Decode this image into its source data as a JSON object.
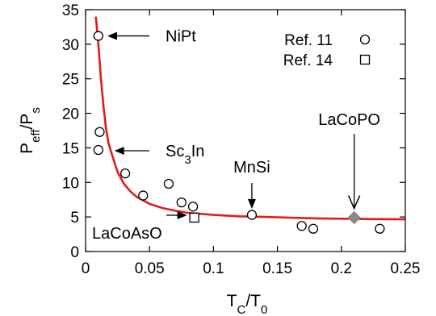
{
  "chart_data": {
    "type": "scatter",
    "xlim": [
      0,
      0.25
    ],
    "ylim": [
      0,
      35
    ],
    "x_ticks": [
      "0",
      "0.05",
      "0.1",
      "0.15",
      "0.2",
      "0.25"
    ],
    "x_tick_values": [
      0,
      0.05,
      0.1,
      0.15,
      0.2,
      0.25
    ],
    "y_ticks": [
      "0",
      "5",
      "10",
      "15",
      "20",
      "25",
      "30",
      "35"
    ],
    "y_tick_values": [
      0,
      5,
      10,
      15,
      20,
      25,
      30,
      35
    ],
    "xlabel": {
      "main": "T",
      "sub": "C",
      "mid": "/T",
      "sub2": "0"
    },
    "ylabel": {
      "main": "P",
      "sub": "eff",
      "mid": "/P",
      "sub2": "s"
    },
    "grid": false,
    "legend_position": "top-right",
    "series": [
      {
        "name": "Ref. 11",
        "marker": "circle",
        "points": [
          {
            "x": 0.01,
            "y": 31.2
          },
          {
            "x": 0.011,
            "y": 17.3
          },
          {
            "x": 0.01,
            "y": 14.7
          },
          {
            "x": 0.031,
            "y": 11.3
          },
          {
            "x": 0.045,
            "y": 8.1
          },
          {
            "x": 0.065,
            "y": 9.8
          },
          {
            "x": 0.075,
            "y": 7.1
          },
          {
            "x": 0.084,
            "y": 6.5
          },
          {
            "x": 0.13,
            "y": 5.3
          },
          {
            "x": 0.169,
            "y": 3.7
          },
          {
            "x": 0.178,
            "y": 3.3
          },
          {
            "x": 0.23,
            "y": 3.3
          }
        ]
      },
      {
        "name": "Ref. 14",
        "marker": "square",
        "points": [
          {
            "x": 0.085,
            "y": 4.9
          }
        ]
      },
      {
        "name": "",
        "marker": "diamond",
        "color": "#888888",
        "points": [
          {
            "x": 0.21,
            "y": 4.9
          }
        ]
      }
    ],
    "curve": {
      "color": "#e41a1c",
      "points": [
        [
          0.008,
          34.0
        ],
        [
          0.01,
          30.0
        ],
        [
          0.012,
          25.0
        ],
        [
          0.014,
          21.0
        ],
        [
          0.016,
          17.8
        ],
        [
          0.018,
          15.6
        ],
        [
          0.02,
          14.4
        ],
        [
          0.025,
          11.5
        ],
        [
          0.03,
          9.8
        ],
        [
          0.035,
          8.7
        ],
        [
          0.04,
          7.9
        ],
        [
          0.05,
          6.9
        ],
        [
          0.06,
          6.3
        ],
        [
          0.07,
          5.9
        ],
        [
          0.08,
          5.6
        ],
        [
          0.09,
          5.45
        ],
        [
          0.1,
          5.3
        ],
        [
          0.12,
          5.1
        ],
        [
          0.14,
          5.0
        ],
        [
          0.16,
          4.9
        ],
        [
          0.18,
          4.8
        ],
        [
          0.2,
          4.75
        ],
        [
          0.22,
          4.7
        ],
        [
          0.25,
          4.65
        ]
      ]
    },
    "annotations": [
      {
        "label": "NiPt",
        "x": 0.012,
        "y": 31.2
      },
      {
        "label": "Sc",
        "label_sub": "3",
        "label_tail": "In",
        "x": 0.02,
        "y": 14.7
      },
      {
        "label": "MnSi",
        "x": 0.13,
        "y": 5.5
      },
      {
        "label": "LaCoAsO",
        "x": 0.085,
        "y": 4.9
      },
      {
        "label": "LaCoPO",
        "x": 0.21,
        "y": 5.3
      }
    ]
  }
}
